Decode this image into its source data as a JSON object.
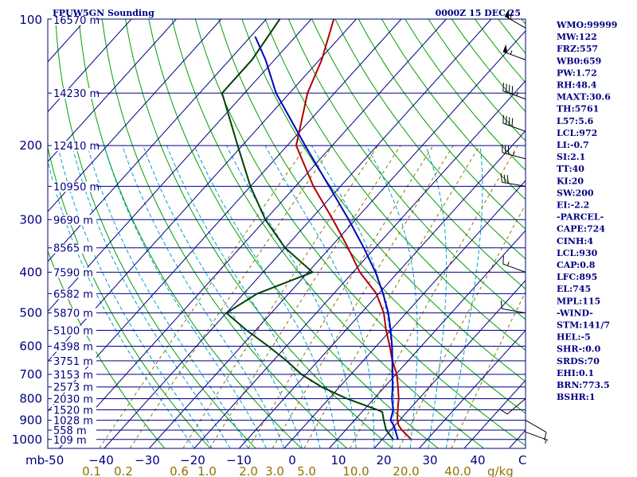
{
  "title_left": "FPUW5GN Sounding",
  "title_right": "0000Z 15 DEC 25",
  "chart_data": {
    "type": "skew-t",
    "pressure_levels": [
      1000,
      900,
      800,
      700,
      600,
      500,
      400,
      300,
      200,
      100
    ],
    "pressure_labels": [
      "1000",
      "900",
      "800",
      "700",
      "600",
      "500",
      "400",
      "300",
      "200",
      "100"
    ],
    "pressure_axis_label": "mb",
    "temperature_ticks": [
      -50,
      -40,
      -30,
      -20,
      -10,
      0,
      10,
      20,
      30,
      40
    ],
    "temperature_labels": [
      "-50",
      "−40",
      "−30",
      "−20",
      "−10",
      "0",
      "10",
      "20",
      "30",
      "40"
    ],
    "temperature_unit": "C",
    "mixing_ratio_ticks": [
      0.1,
      0.2,
      0.6,
      1.0,
      2.0,
      3.0,
      5.0,
      10.0,
      20.0,
      40.0
    ],
    "mixing_ratio_labels": [
      "0.1",
      "0.2",
      "0.6",
      "1.0",
      "2.0",
      "3.0",
      "5.0",
      "10.0",
      "20.0",
      "40.0"
    ],
    "mixing_ratio_unit": "g/kg",
    "height_labels": [
      {
        "p": 1000,
        "text": "109 m"
      },
      {
        "p": 950,
        "text": "558 m"
      },
      {
        "p": 900,
        "text": "1028 m"
      },
      {
        "p": 850,
        "text": "1520 m"
      },
      {
        "p": 800,
        "text": "2030 m"
      },
      {
        "p": 750,
        "text": "2573 m"
      },
      {
        "p": 700,
        "text": "3153 m"
      },
      {
        "p": 650,
        "text": "3751 m"
      },
      {
        "p": 600,
        "text": "4398 m"
      },
      {
        "p": 550,
        "text": "5100 m"
      },
      {
        "p": 500,
        "text": "5870 m"
      },
      {
        "p": 450,
        "text": "6582 m"
      },
      {
        "p": 400,
        "text": "7590 m"
      },
      {
        "p": 350,
        "text": "8565 m"
      },
      {
        "p": 300,
        "text": "9690 m"
      },
      {
        "p": 250,
        "text": "10950 m"
      },
      {
        "p": 200,
        "text": "12410 m"
      },
      {
        "p": 150,
        "text": "14230 m"
      },
      {
        "p": 100,
        "text": "16570 m"
      }
    ],
    "series": [
      {
        "color": "#b00000",
        "points": [
          {
            "p": 1000,
            "t": 26.5
          },
          {
            "p": 975,
            "t": 24.5
          },
          {
            "p": 950,
            "t": 22.5
          },
          {
            "p": 925,
            "t": 20.8
          },
          {
            "p": 900,
            "t": 19.5
          },
          {
            "p": 850,
            "t": 17.5
          },
          {
            "p": 800,
            "t": 15.5
          },
          {
            "p": 750,
            "t": 13.0
          },
          {
            "p": 700,
            "t": 10.2
          },
          {
            "p": 650,
            "t": 6.5
          },
          {
            "p": 600,
            "t": 3.0
          },
          {
            "p": 550,
            "t": -1.0
          },
          {
            "p": 500,
            "t": -5.0
          },
          {
            "p": 450,
            "t": -10.5
          },
          {
            "p": 400,
            "t": -18.5
          },
          {
            "p": 350,
            "t": -26.0
          },
          {
            "p": 300,
            "t": -35.0
          },
          {
            "p": 250,
            "t": -46.0
          },
          {
            "p": 200,
            "t": -58.0
          },
          {
            "p": 150,
            "t": -66.0
          },
          {
            "p": 125,
            "t": -69.5
          },
          {
            "p": 100,
            "t": -75.0
          }
        ]
      },
      {
        "color": "#004000",
        "points": [
          {
            "p": 1000,
            "t": 22.5
          },
          {
            "p": 950,
            "t": 19.0
          },
          {
            "p": 900,
            "t": 16.5
          },
          {
            "p": 860,
            "t": 14.5
          },
          {
            "p": 850,
            "t": 13.0
          },
          {
            "p": 800,
            "t": 4.0
          },
          {
            "p": 750,
            "t": -4.0
          },
          {
            "p": 700,
            "t": -11.0
          },
          {
            "p": 650,
            "t": -17.0
          },
          {
            "p": 600,
            "t": -24.0
          },
          {
            "p": 550,
            "t": -32.0
          },
          {
            "p": 500,
            "t": -40.0
          },
          {
            "p": 450,
            "t": -37.0
          },
          {
            "p": 400,
            "t": -29.0
          },
          {
            "p": 350,
            "t": -40.0
          },
          {
            "p": 300,
            "t": -50.0
          },
          {
            "p": 250,
            "t": -60.0
          },
          {
            "p": 200,
            "t": -71.0
          },
          {
            "p": 150,
            "t": -85.0
          },
          {
            "p": 125,
            "t": -85.0
          },
          {
            "p": 100,
            "t": -87.0
          }
        ]
      },
      {
        "color": "#0000c0",
        "points": [
          {
            "p": 1000,
            "t": 23.5
          },
          {
            "p": 930,
            "t": 20.0
          },
          {
            "p": 900,
            "t": 18.0
          },
          {
            "p": 850,
            "t": 16.5
          },
          {
            "p": 800,
            "t": 14.0
          },
          {
            "p": 750,
            "t": 11.8
          },
          {
            "p": 700,
            "t": 9.2
          },
          {
            "p": 650,
            "t": 6.5
          },
          {
            "p": 600,
            "t": 3.5
          },
          {
            "p": 550,
            "t": 0.0
          },
          {
            "p": 500,
            "t": -4.0
          },
          {
            "p": 450,
            "t": -9.0
          },
          {
            "p": 400,
            "t": -15.0
          },
          {
            "p": 350,
            "t": -22.5
          },
          {
            "p": 300,
            "t": -31.5
          },
          {
            "p": 250,
            "t": -42.5
          },
          {
            "p": 200,
            "t": -56.0
          },
          {
            "p": 150,
            "t": -73.0
          },
          {
            "p": 125,
            "t": -82.0
          },
          {
            "p": 110,
            "t": -89.0
          }
        ]
      }
    ],
    "winds": [
      {
        "p": 105,
        "dir": 300,
        "spd": 60
      },
      {
        "p": 125,
        "dir": 290,
        "spd": 55
      },
      {
        "p": 155,
        "dir": 290,
        "spd": 45
      },
      {
        "p": 185,
        "dir": 290,
        "spd": 40
      },
      {
        "p": 215,
        "dir": 285,
        "spd": 35
      },
      {
        "p": 250,
        "dir": 280,
        "spd": 30
      },
      {
        "p": 400,
        "dir": 290,
        "spd": 15
      },
      {
        "p": 500,
        "dir": 280,
        "spd": 10
      },
      {
        "p": 800,
        "dir": 230,
        "spd": 10
      },
      {
        "p": 900,
        "dir": 120,
        "spd": 10
      },
      {
        "p": 960,
        "dir": 110,
        "spd": 5
      }
    ]
  },
  "indices": [
    "WMO:99999",
    "MW:122",
    "FRZ:557",
    "WB0:659",
    "PW:1.72",
    "RH:48.4",
    "MAXT:30.6",
    "TH:5761",
    "L57:5.6",
    "LCL:972",
    "LI:-0.7",
    "SI:2.1",
    "TT:40",
    "KI:20",
    "SW:200",
    "EI:-2.2",
    "-PARCEL-",
    "CAPE:724",
    "CINH:4",
    "LCL:930",
    "CAP:0.8",
    "LFC:895",
    "EL:745",
    "MPL:115",
    "-WIND-",
    "STM:141/7",
    "HEL:-5",
    "SHR-:0.0",
    "SRDS:70",
    "EHI:0.1",
    "BRN:773.5",
    "BSHR:1"
  ],
  "colors": {
    "frame": "#000080",
    "isobar": "#000080",
    "isotherm": "#000080",
    "dry_adiabat": "#00a000",
    "moist_adiabat": "#00a0d0",
    "mixing_ratio": "#8b7500",
    "wind_barb": "#000000"
  }
}
